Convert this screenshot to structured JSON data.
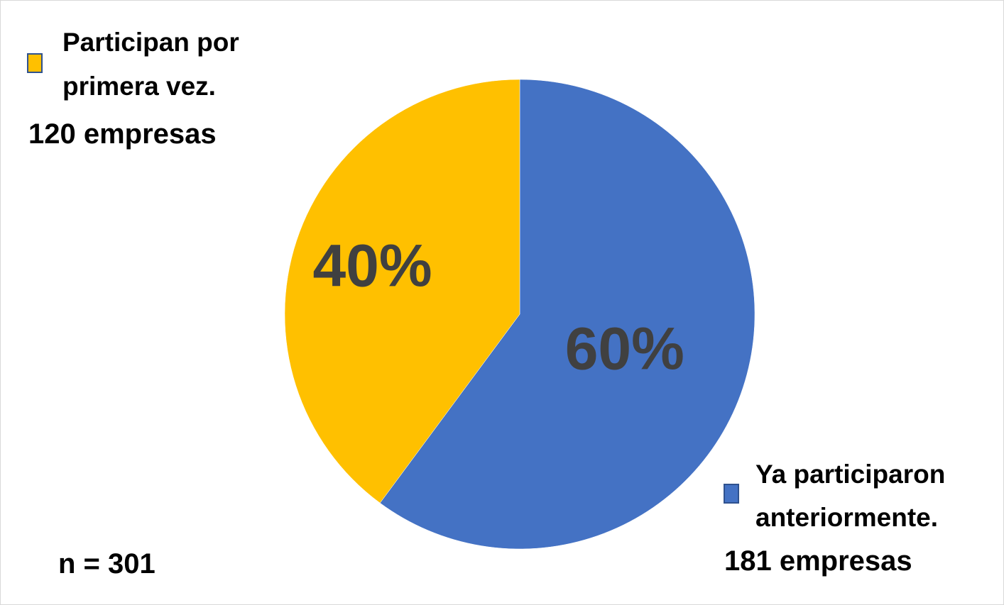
{
  "chart_data": {
    "type": "pie",
    "slices": [
      {
        "name": "Ya participaron anteriormente.",
        "legend_line1": "Ya participaron",
        "legend_line2": "anteriormente.",
        "value": 181,
        "percent": 60,
        "percent_label": "60%",
        "count_label": "181 empresas",
        "color": "#4472c4"
      },
      {
        "name": "Participan por primera vez.",
        "legend_line1": "Participan por",
        "legend_line2": "primera vez.",
        "value": 120,
        "percent": 40,
        "percent_label": "40%",
        "count_label": "120 empresas",
        "color": "#ffc000"
      }
    ],
    "total": 301,
    "sample_label": "n = 301",
    "label_color": "#404040"
  }
}
